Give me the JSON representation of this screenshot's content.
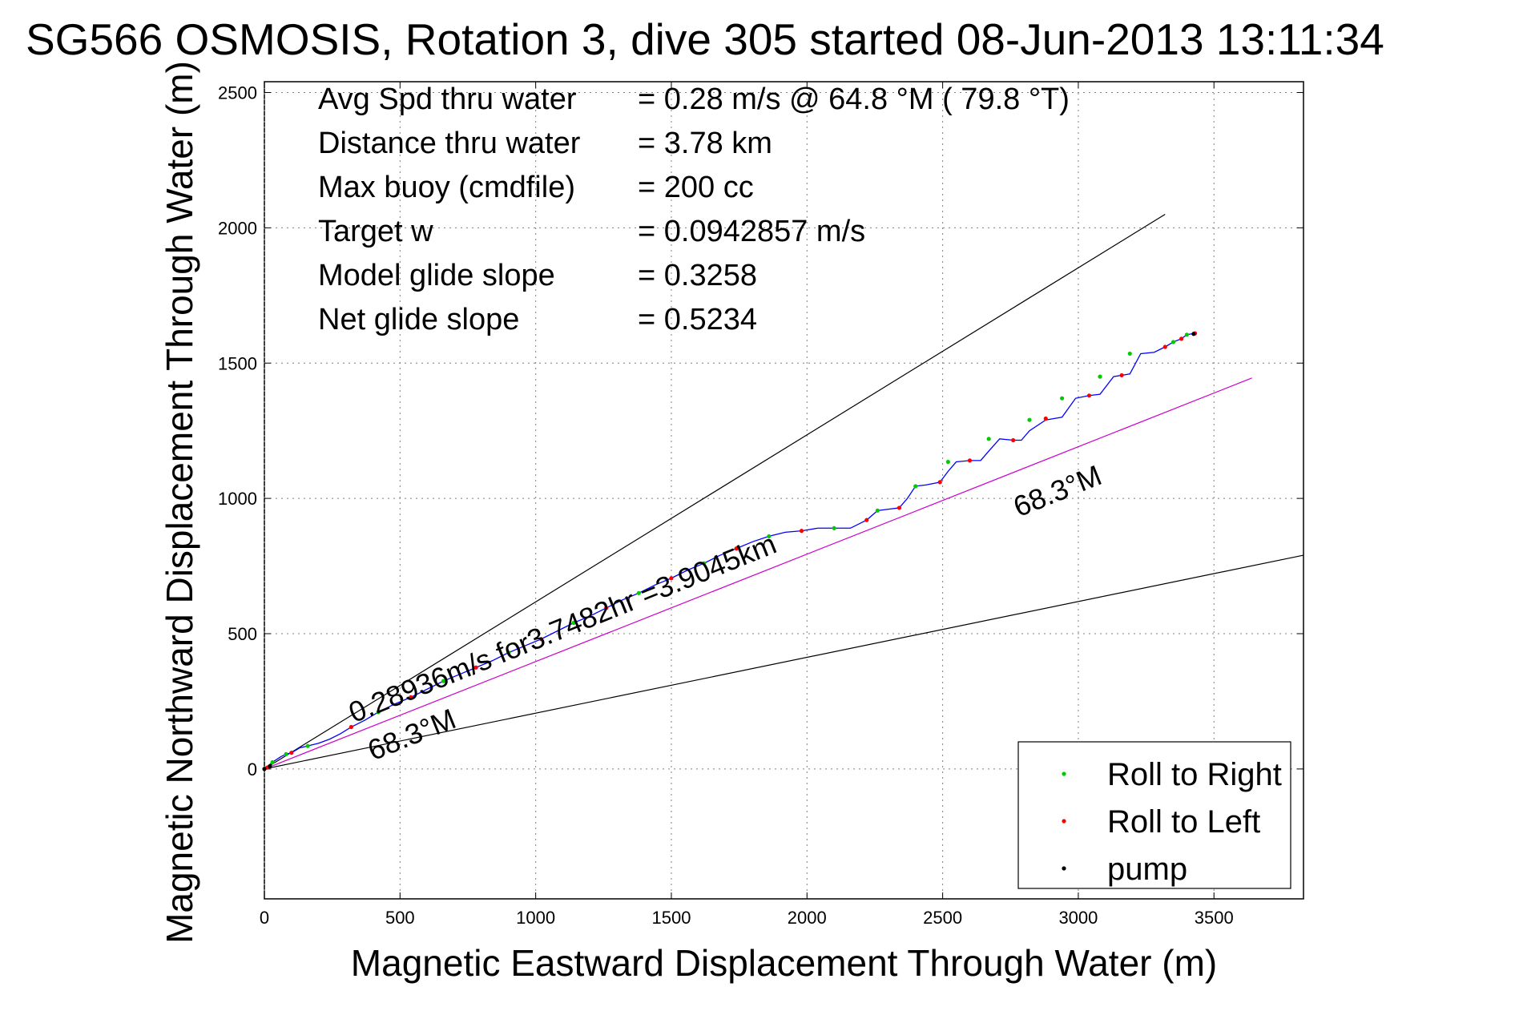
{
  "chart_data": {
    "type": "line",
    "title": "SG566 OSMOSIS, Rotation 3, dive 305 started 08-Jun-2013 13:11:34",
    "xlabel": "Magnetic Eastward Displacement Through Water (m)",
    "ylabel": "Magnetic Northward Displacement Through Water (m)",
    "xlim": [
      0,
      3830
    ],
    "ylim": [
      -480,
      2540
    ],
    "xticks": [
      0,
      500,
      1000,
      1500,
      2000,
      2500,
      3000,
      3500
    ],
    "yticks": [
      0,
      500,
      1000,
      1500,
      2000,
      2500
    ],
    "xtick_labels": [
      "0",
      "500",
      "1000",
      "1500",
      "2000",
      "2500",
      "3000",
      "3500"
    ],
    "ytick_labels": [
      "0",
      "500",
      "1000",
      "1500",
      "2000",
      "2500"
    ],
    "grid": true,
    "info_lines": [
      {
        "label": "Avg Spd thru water",
        "value": "=  0.28 m/s @  64.8 °M ( 79.8 °T)"
      },
      {
        "label": "Distance thru water",
        "value": "=  3.78 km"
      },
      {
        "label": "Max buoy (cmdfile)",
        "value": "= 200 cc"
      },
      {
        "label": "Target w",
        "value": "= 0.0942857 m/s"
      },
      {
        "label": "Model glide slope",
        "value": "= 0.3258"
      },
      {
        "label": "Net glide slope",
        "value": "= 0.5234"
      }
    ],
    "annotations": [
      {
        "text": "0.28936m/s for3.7482hr =3.9045km",
        "x": 330,
        "y": 170,
        "angle_deg": -22
      },
      {
        "text": "68.3°M",
        "x": 2780,
        "y": 930,
        "angle_deg": -22
      },
      {
        "text": "68.3°M",
        "x": 400,
        "y": 30,
        "angle_deg": -22
      }
    ],
    "reference_lines": [
      {
        "name": "upper heading line",
        "color": "#000000",
        "x": [
          0,
          3320
        ],
        "y": [
          0,
          2050
        ]
      },
      {
        "name": "lower heading line",
        "color": "#000000",
        "x": [
          0,
          3830
        ],
        "y": [
          0,
          790
        ]
      },
      {
        "name": "current direction",
        "color": "#cc00cc",
        "x": [
          0,
          3640
        ],
        "y": [
          0,
          1445
        ]
      }
    ],
    "series": [
      {
        "name": "track",
        "color": "#0000ff",
        "x": [
          0,
          30,
          60,
          80,
          100,
          130,
          160,
          200,
          240,
          280,
          320,
          370,
          420,
          480,
          540,
          600,
          660,
          720,
          780,
          840,
          900,
          960,
          1020,
          1080,
          1140,
          1200,
          1260,
          1320,
          1380,
          1440,
          1500,
          1560,
          1620,
          1680,
          1740,
          1800,
          1860,
          1920,
          1980,
          2040,
          2100,
          2160,
          2220,
          2260,
          2300,
          2340,
          2370,
          2400,
          2440,
          2490,
          2520,
          2550,
          2600,
          2640,
          2670,
          2710,
          2760,
          2790,
          2820,
          2880,
          2910,
          2940,
          2990,
          3040,
          3080,
          3130,
          3160,
          3190,
          3230,
          3280,
          3320,
          3350,
          3380,
          3400,
          3430
        ],
        "y": [
          0,
          25,
          45,
          55,
          60,
          78,
          85,
          95,
          110,
          130,
          155,
          180,
          210,
          240,
          265,
          295,
          325,
          350,
          375,
          400,
          430,
          455,
          480,
          510,
          540,
          565,
          595,
          625,
          650,
          680,
          705,
          735,
          760,
          790,
          815,
          840,
          860,
          875,
          880,
          890,
          890,
          890,
          920,
          955,
          960,
          965,
          1000,
          1045,
          1050,
          1060,
          1100,
          1135,
          1140,
          1140,
          1175,
          1220,
          1215,
          1215,
          1250,
          1290,
          1295,
          1300,
          1370,
          1380,
          1385,
          1450,
          1455,
          1460,
          1535,
          1540,
          1560,
          1578,
          1590,
          1605,
          1610
        ]
      },
      {
        "name": "Roll to Right",
        "color": "#00cc00",
        "x": [
          30,
          80,
          160,
          420,
          660,
          900,
          1140,
          1380,
          1620,
          1860,
          2100,
          2260,
          2400,
          2520,
          2670,
          2820,
          2940,
          3080,
          3190,
          3350,
          3400
        ],
        "y": [
          25,
          55,
          85,
          210,
          325,
          430,
          540,
          650,
          760,
          860,
          890,
          955,
          1045,
          1135,
          1220,
          1290,
          1370,
          1450,
          1535,
          1578,
          1605
        ]
      },
      {
        "name": "Roll to Left",
        "color": "#ff0000",
        "x": [
          10,
          100,
          320,
          540,
          780,
          1020,
          1260,
          1500,
          1740,
          1980,
          2220,
          2340,
          2490,
          2600,
          2760,
          2880,
          3040,
          3160,
          3320,
          3380,
          3430
        ],
        "y": [
          5,
          60,
          155,
          265,
          375,
          480,
          595,
          705,
          815,
          880,
          920,
          965,
          1060,
          1140,
          1215,
          1295,
          1380,
          1455,
          1560,
          1590,
          1610
        ]
      },
      {
        "name": "pump",
        "color": "#000000",
        "x": [
          0,
          20,
          3425
        ],
        "y": [
          0,
          10,
          1608
        ]
      }
    ],
    "legend": {
      "position": "bottom-right",
      "entries": [
        "Roll to Right",
        "Roll to Left",
        "pump"
      ]
    }
  }
}
